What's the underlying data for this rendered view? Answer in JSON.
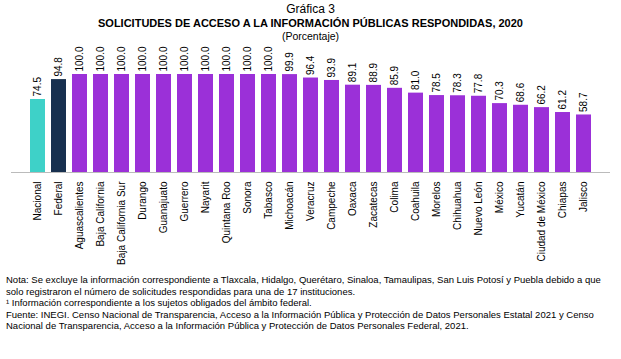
{
  "chart_data": {
    "type": "bar",
    "label": "Gráfica 3",
    "title": "SOLICITUDES DE ACCESO A LA INFORMACIÓN PÚBLICAS RESPONDIDAS, 2020",
    "subtitle": "(Porcentaje)",
    "categories": [
      "Nacional",
      "Federal",
      "Aguascalientes",
      "Baja California",
      "Baja California Sur",
      "Durango",
      "Guanajuato",
      "Guerrero",
      "Nayarit",
      "Quintana Roo",
      "Sonora",
      "Tabasco",
      "Michoacán",
      "Veracruz",
      "Campeche",
      "Oaxaca",
      "Zacatecas",
      "Colima",
      "Coahuila",
      "Morelos",
      "Chihuahua",
      "Nuevo León",
      "México",
      "Yucatán",
      "Ciudad de México",
      "Chiapas",
      "Jalisco"
    ],
    "values": [
      74.5,
      94.8,
      100,
      100,
      100,
      100,
      100,
      100,
      100,
      100,
      100,
      100,
      99.9,
      96.4,
      93.9,
      89.1,
      88.9,
      85.9,
      81.0,
      78.5,
      78.3,
      77.8,
      70.3,
      68.6,
      66.2,
      61.2,
      58.7
    ],
    "value_labels": [
      "74.5",
      "94.8",
      "100.0",
      "100.0",
      "100.0",
      "100.0",
      "100.0",
      "100.0",
      "100.0",
      "100.0",
      "100.0",
      "100.0",
      "99.9",
      "96.4",
      "93.9",
      "89.1",
      "88.9",
      "85.9",
      "81.0",
      "78.5",
      "78.3",
      "77.8",
      "70.3",
      "68.6",
      "66.2",
      "61.2",
      "58.7"
    ],
    "colors": [
      "#3ed1c8",
      "#17304f",
      "#9b30d8",
      "#9b30d8",
      "#9b30d8",
      "#9b30d8",
      "#9b30d8",
      "#9b30d8",
      "#9b30d8",
      "#9b30d8",
      "#9b30d8",
      "#9b30d8",
      "#9b30d8",
      "#9b30d8",
      "#9b30d8",
      "#9b30d8",
      "#9b30d8",
      "#9b30d8",
      "#9b30d8",
      "#9b30d8",
      "#9b30d8",
      "#9b30d8",
      "#9b30d8",
      "#9b30d8",
      "#9b30d8",
      "#9b30d8",
      "#9b30d8"
    ],
    "ylim": [
      0,
      100
    ],
    "data_labels": true,
    "tick_labels": "x",
    "notes": [
      "Nota: Se excluye la información correspondiente a Tlaxcala, Hidalgo, Querétaro, Sinaloa, Tamaulipas, San Luis Potosí y Puebla debido a que solo registraron el número de solicitudes respondidas para una de 17 instituciones.",
      "¹ Información correspondiente a los sujetos obligados del ámbito federal.",
      "Fuente: INEGI. Censo Nacional de Transparencia, Acceso a la Información Pública y Protección de Datos Personales Estatal 2021 y Censo Nacional de Transparencia, Acceso a la Información Pública y Protección de Datos Personales Federal, 2021."
    ]
  }
}
